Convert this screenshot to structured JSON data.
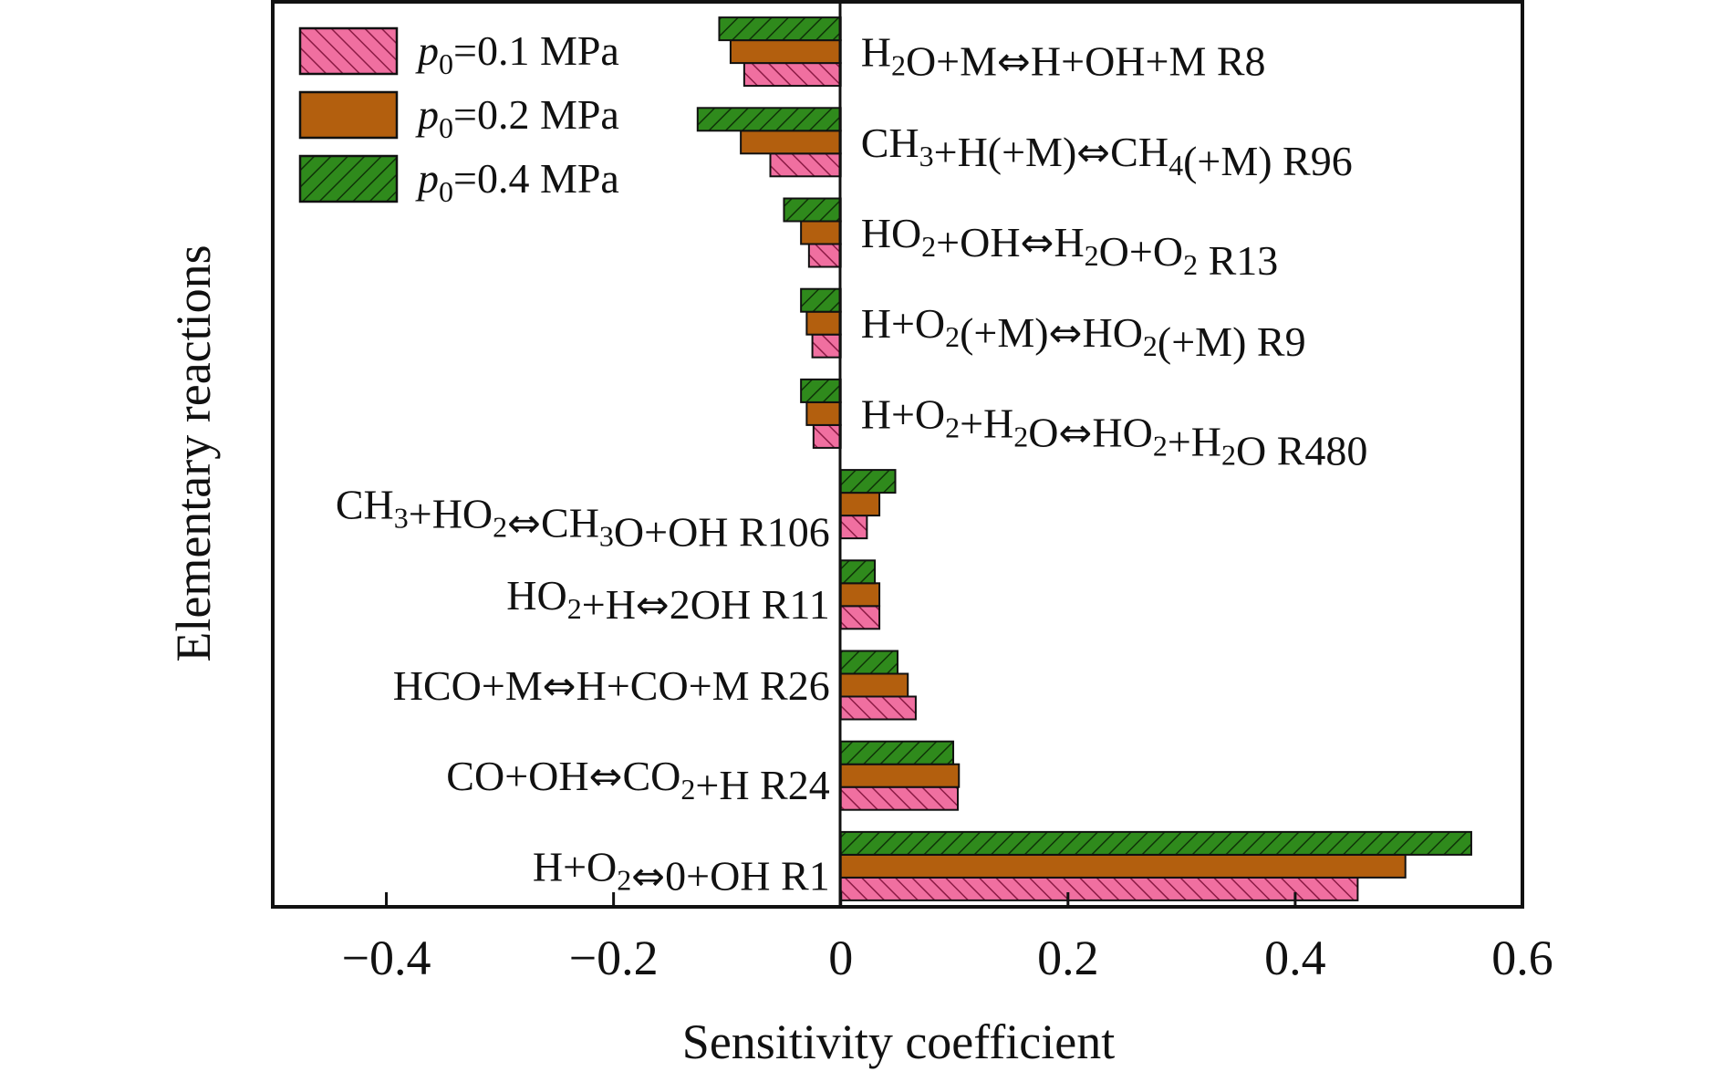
{
  "chart_data": {
    "type": "bar",
    "orientation": "horizontal",
    "xlabel": "Sensitivity coefficient",
    "ylabel": "Elementary reactions",
    "xlim": [
      -0.5,
      0.6
    ],
    "xticks": [
      "−0.4",
      "−0.2",
      "0",
      "0.2",
      "0.4",
      "0.6"
    ],
    "xtick_values": [
      -0.4,
      -0.2,
      0,
      0.2,
      0.4,
      0.6
    ],
    "grid": false,
    "legend_position": "top-left",
    "categories": [
      {
        "parts": [
          [
            "H"
          ],
          [
            "2",
            "sub"
          ],
          [
            "O+M"
          ],
          [
            "⇔",
            "arrow"
          ],
          [
            "H+OH+M R8"
          ]
        ]
      },
      {
        "parts": [
          [
            "CH"
          ],
          [
            "3",
            "sub"
          ],
          [
            "+H(+M)"
          ],
          [
            "⇔",
            "arrow"
          ],
          [
            "CH"
          ],
          [
            "4",
            "sub"
          ],
          [
            "(+M) R96"
          ]
        ]
      },
      {
        "parts": [
          [
            "HO"
          ],
          [
            "2",
            "sub"
          ],
          [
            "+OH"
          ],
          [
            "⇔",
            "arrow"
          ],
          [
            "H"
          ],
          [
            "2",
            "sub"
          ],
          [
            "O+O"
          ],
          [
            "2",
            "sub"
          ],
          [
            " R13"
          ]
        ]
      },
      {
        "parts": [
          [
            "H+O"
          ],
          [
            "2",
            "sub"
          ],
          [
            "(+M)"
          ],
          [
            "⇔",
            "arrow"
          ],
          [
            "HO"
          ],
          [
            "2",
            "sub"
          ],
          [
            "(+M) R9"
          ]
        ]
      },
      {
        "parts": [
          [
            "H+O"
          ],
          [
            "2",
            "sub"
          ],
          [
            "+H"
          ],
          [
            "2",
            "sub"
          ],
          [
            "O"
          ],
          [
            "⇔",
            "arrow"
          ],
          [
            "HO"
          ],
          [
            "2",
            "sub"
          ],
          [
            "+H"
          ],
          [
            "2",
            "sub"
          ],
          [
            "O R480"
          ]
        ]
      },
      {
        "parts": [
          [
            "CH"
          ],
          [
            "3",
            "sub"
          ],
          [
            "+HO"
          ],
          [
            "2",
            "sub"
          ],
          [
            "⇔",
            "arrow"
          ],
          [
            "CH"
          ],
          [
            "3",
            "sub"
          ],
          [
            "O+OH R106"
          ]
        ]
      },
      {
        "parts": [
          [
            "HO"
          ],
          [
            "2",
            "sub"
          ],
          [
            "+H"
          ],
          [
            "⇔",
            "arrow"
          ],
          [
            "2OH R11"
          ]
        ]
      },
      {
        "parts": [
          [
            "HCO+M"
          ],
          [
            "⇔",
            "arrow"
          ],
          [
            "H+CO+M R26"
          ]
        ]
      },
      {
        "parts": [
          [
            "CO+OH"
          ],
          [
            "⇔",
            "arrow"
          ],
          [
            "CO"
          ],
          [
            "2",
            "sub"
          ],
          [
            "+H R24"
          ]
        ]
      },
      {
        "parts": [
          [
            "H+O"
          ],
          [
            "2",
            "sub"
          ],
          [
            "⇔",
            "arrow"
          ],
          [
            "0+OH R1"
          ]
        ]
      }
    ],
    "series": [
      {
        "name": "0.1 MPa",
        "color": "#f06fa0",
        "hatch_color": "#8c1b45",
        "hatch": "backslash",
        "values": [
          -0.085,
          -0.062,
          -0.028,
          -0.025,
          -0.024,
          0.023,
          0.034,
          0.066,
          0.103,
          0.455
        ]
      },
      {
        "name": "0.2 MPa",
        "color": "#b35f0e",
        "hatch_color": "#4a2604",
        "hatch": "none",
        "values": [
          -0.097,
          -0.088,
          -0.035,
          -0.03,
          -0.03,
          0.034,
          0.034,
          0.059,
          0.104,
          0.497
        ]
      },
      {
        "name": "0.4 MPa",
        "color": "#2f8a1c",
        "hatch_color": "#0f3308",
        "hatch": "slash",
        "values": [
          -0.107,
          -0.126,
          -0.05,
          -0.035,
          -0.035,
          0.048,
          0.03,
          0.05,
          0.099,
          0.555
        ]
      }
    ],
    "legend_prefix": "p",
    "legend_prefix_sub": "0",
    "legend_eq": "="
  }
}
